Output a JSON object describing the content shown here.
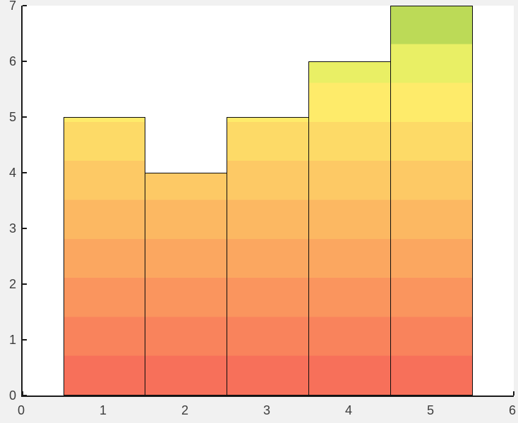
{
  "figure": {
    "background_color": "#f1f1f1",
    "plot_background_color": "#ffffff",
    "axis_color": "#1a1a1a",
    "tick_label_color": "#3d3d3d"
  },
  "chart_data": {
    "type": "bar",
    "x": [
      1,
      2,
      3,
      4,
      5
    ],
    "values": [
      5,
      4,
      5,
      6,
      7
    ],
    "bar_width": 1,
    "xlim": [
      0,
      6
    ],
    "ylim": [
      0,
      7
    ],
    "x_tick_values": [
      0,
      1,
      2,
      3,
      4,
      5,
      6
    ],
    "y_tick_values": [
      0,
      1,
      2,
      3,
      4,
      5,
      6,
      7
    ],
    "x_tick_labels": [
      "0",
      "1",
      "2",
      "3",
      "4",
      "5",
      "6"
    ],
    "y_tick_labels": [
      "0",
      "1",
      "2",
      "3",
      "4",
      "5",
      "6",
      "7"
    ],
    "title": "",
    "xlabel": "",
    "ylabel": "",
    "grid": false,
    "legend": null,
    "bar_edge_color": "#0d0d0d",
    "color_bands_bottom_to_top": [
      "#f7705a",
      "#f9835c",
      "#fa955e",
      "#fba760",
      "#fcb862",
      "#fdc965",
      "#fdda67",
      "#feeb6a",
      "#e9ef65",
      "#bcda57"
    ]
  }
}
